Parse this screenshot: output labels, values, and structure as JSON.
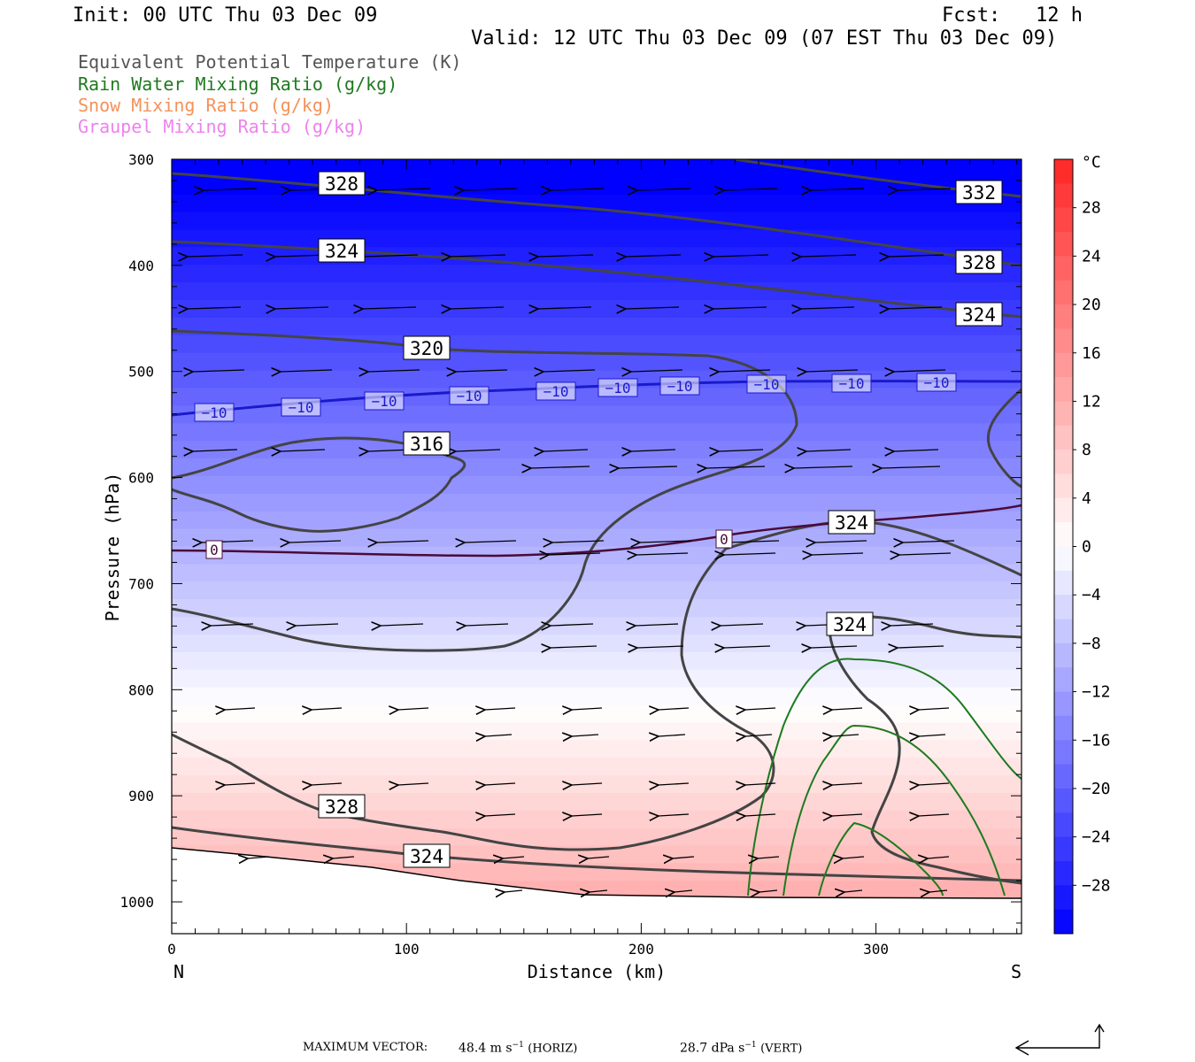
{
  "header": {
    "init": "Init: 00 UTC Thu 03 Dec 09",
    "fcst_label": "Fcst:",
    "fcst_value": "12 h",
    "valid": "Valid: 12 UTC Thu 03 Dec 09 (07 EST Thu 03 Dec 09)"
  },
  "legend": [
    {
      "text": "Equivalent Potential Temperature (K)",
      "color": "#555555"
    },
    {
      "text": "Rain Water Mixing Ratio (g/kg)",
      "color": "#1e7a1e"
    },
    {
      "text": "Snow Mixing Ratio (g/kg)",
      "color": "#f4925a"
    },
    {
      "text": "Graupel Mixing Ratio (g/kg)",
      "color": "#ee82ee"
    }
  ],
  "footer": {
    "max_vector_label": "MAXIMUM VECTOR:",
    "horiz_value": "48.4 m s",
    "horiz_exp": "−1",
    "horiz_unit": "(HORIZ)",
    "vert_value": "28.7 dPa s",
    "vert_exp": "−1",
    "vert_unit": "(VERT)"
  },
  "chart_data": {
    "type": "cross-section",
    "xlabel": "Distance (km)",
    "ylabel": "Pressure (hPa)",
    "x_ticks": [
      0,
      100,
      200,
      300
    ],
    "xlim": [
      0,
      362
    ],
    "y_ticks": [
      300,
      400,
      500,
      600,
      700,
      800,
      900,
      1000
    ],
    "ylim": [
      1030,
      300
    ],
    "y_scale": "linear",
    "left_end_label": "N",
    "right_end_label": "S",
    "colorbar": {
      "unit": "°C",
      "tick_labels": [
        28,
        24,
        20,
        16,
        12,
        8,
        4,
        0,
        -4,
        -8,
        -12,
        -16,
        -20,
        -24,
        -28
      ],
      "range": [
        -32,
        32
      ]
    },
    "isotherm_labels": [
      "-10",
      "-10",
      "-10",
      "-10",
      "-10",
      "-10",
      "-10",
      "-10",
      "-10",
      "-10",
      "0",
      "0"
    ],
    "theta_e_labels": [
      "328",
      "324",
      "320",
      "316",
      "332",
      "328",
      "324",
      "324",
      "328",
      "324",
      "324"
    ],
    "colors": {
      "cold_max": "#0000ff",
      "warm_max": "#ff1a1a",
      "neutral": "#ffffff",
      "theta_e": "#444444",
      "rain": "#1e7a1e",
      "isotherm_cold": "#1a1acc",
      "isotherm_zero": "#4a0a3a"
    }
  }
}
